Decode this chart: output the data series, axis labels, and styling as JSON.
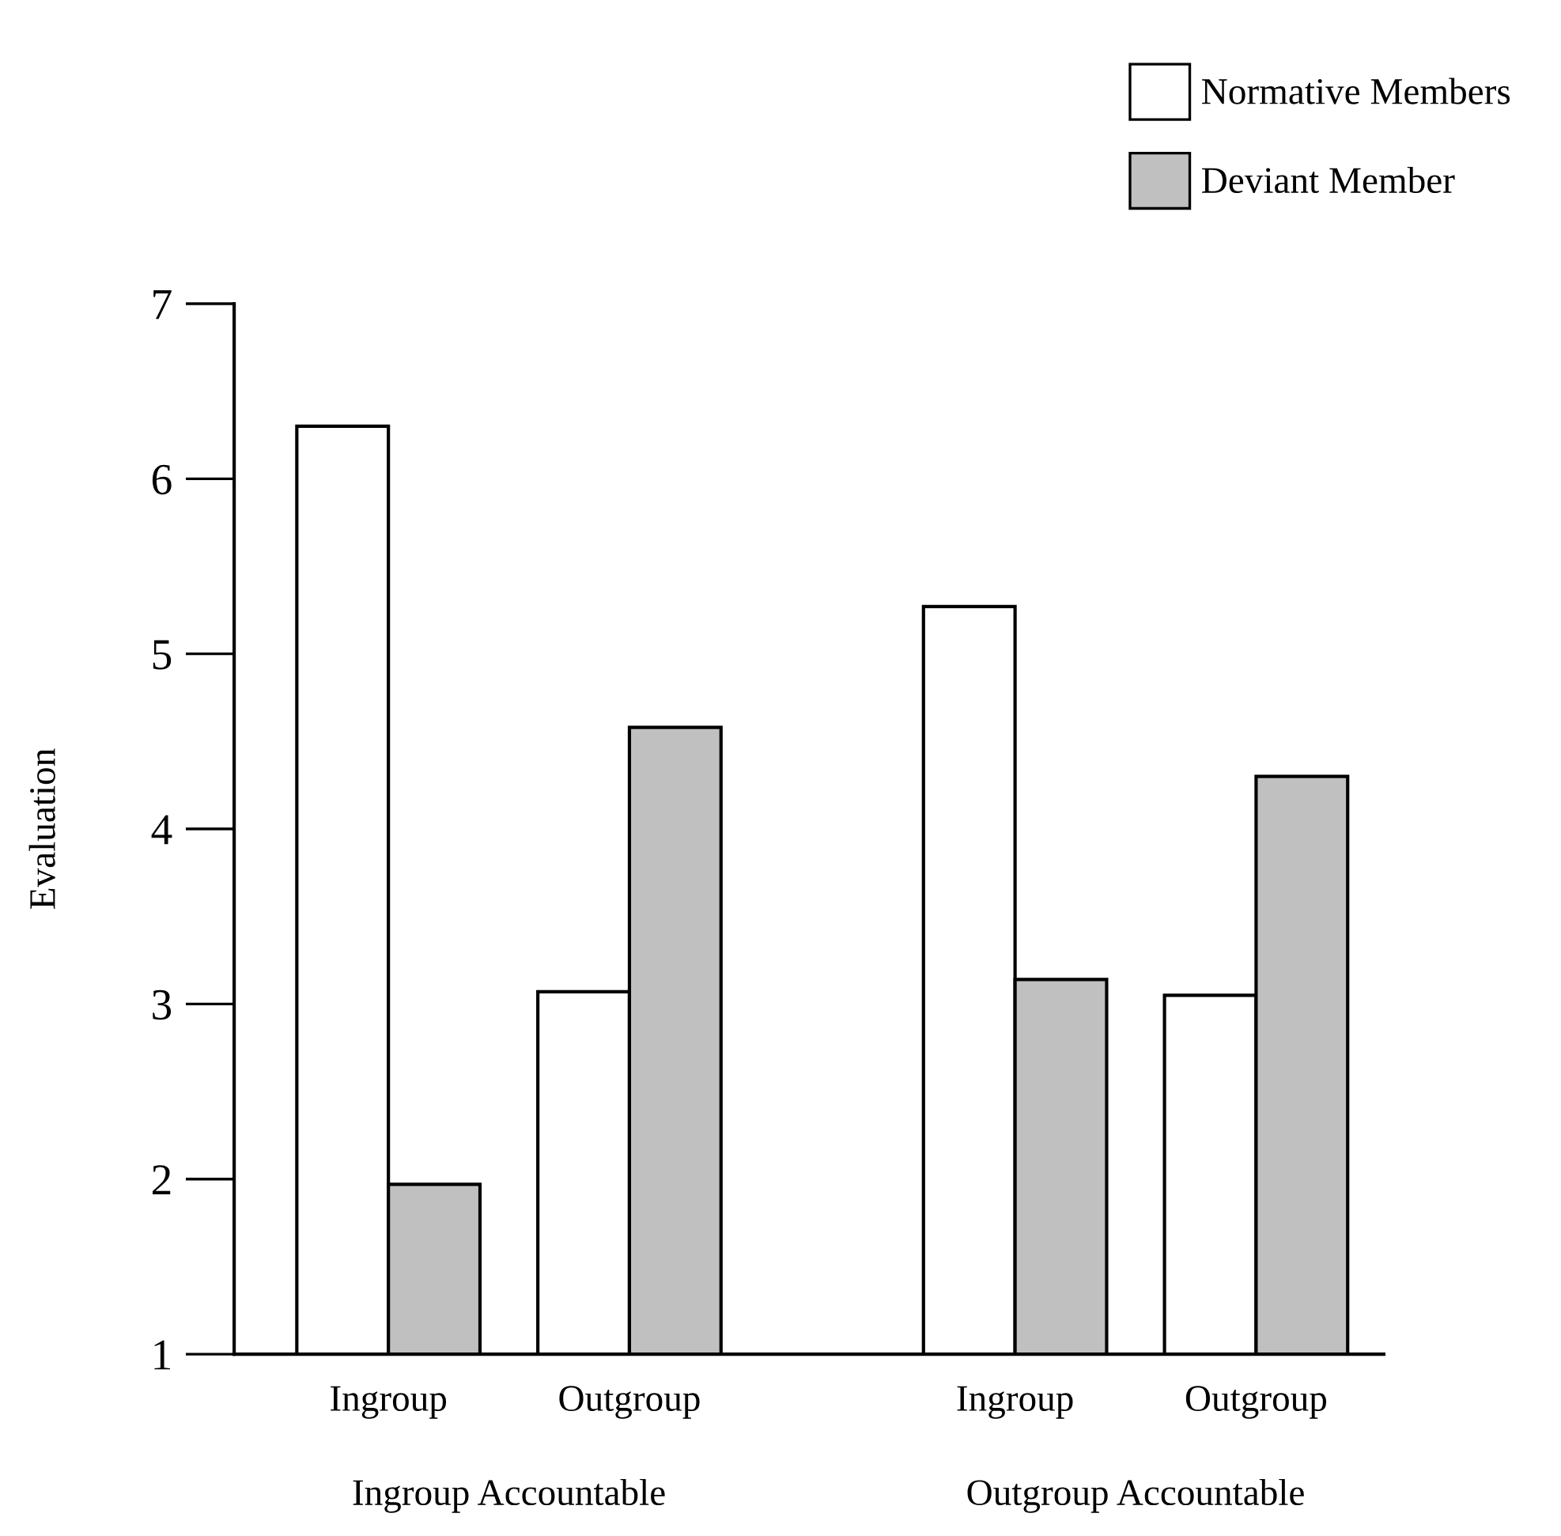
{
  "chart_data": {
    "type": "bar",
    "categories": [
      "Ingroup",
      "Outgroup",
      "Ingroup",
      "Outgroup"
    ],
    "series": [
      {
        "name": "Normative Members",
        "color": "#ffffff",
        "values": [
          6.3,
          3.07,
          5.27,
          3.05
        ]
      },
      {
        "name": "Deviant Member",
        "color": "#c0c0c0",
        "values": [
          1.97,
          4.58,
          3.14,
          4.3
        ]
      }
    ],
    "ylabel": "Evaluation",
    "ylim": [
      1,
      7
    ],
    "yticks": [
      1,
      2,
      3,
      4,
      5,
      6,
      7
    ],
    "annotations": [
      "Ingroup Accountable",
      "Outgroup Accountable"
    ],
    "legend": "top right",
    "grid": false
  }
}
